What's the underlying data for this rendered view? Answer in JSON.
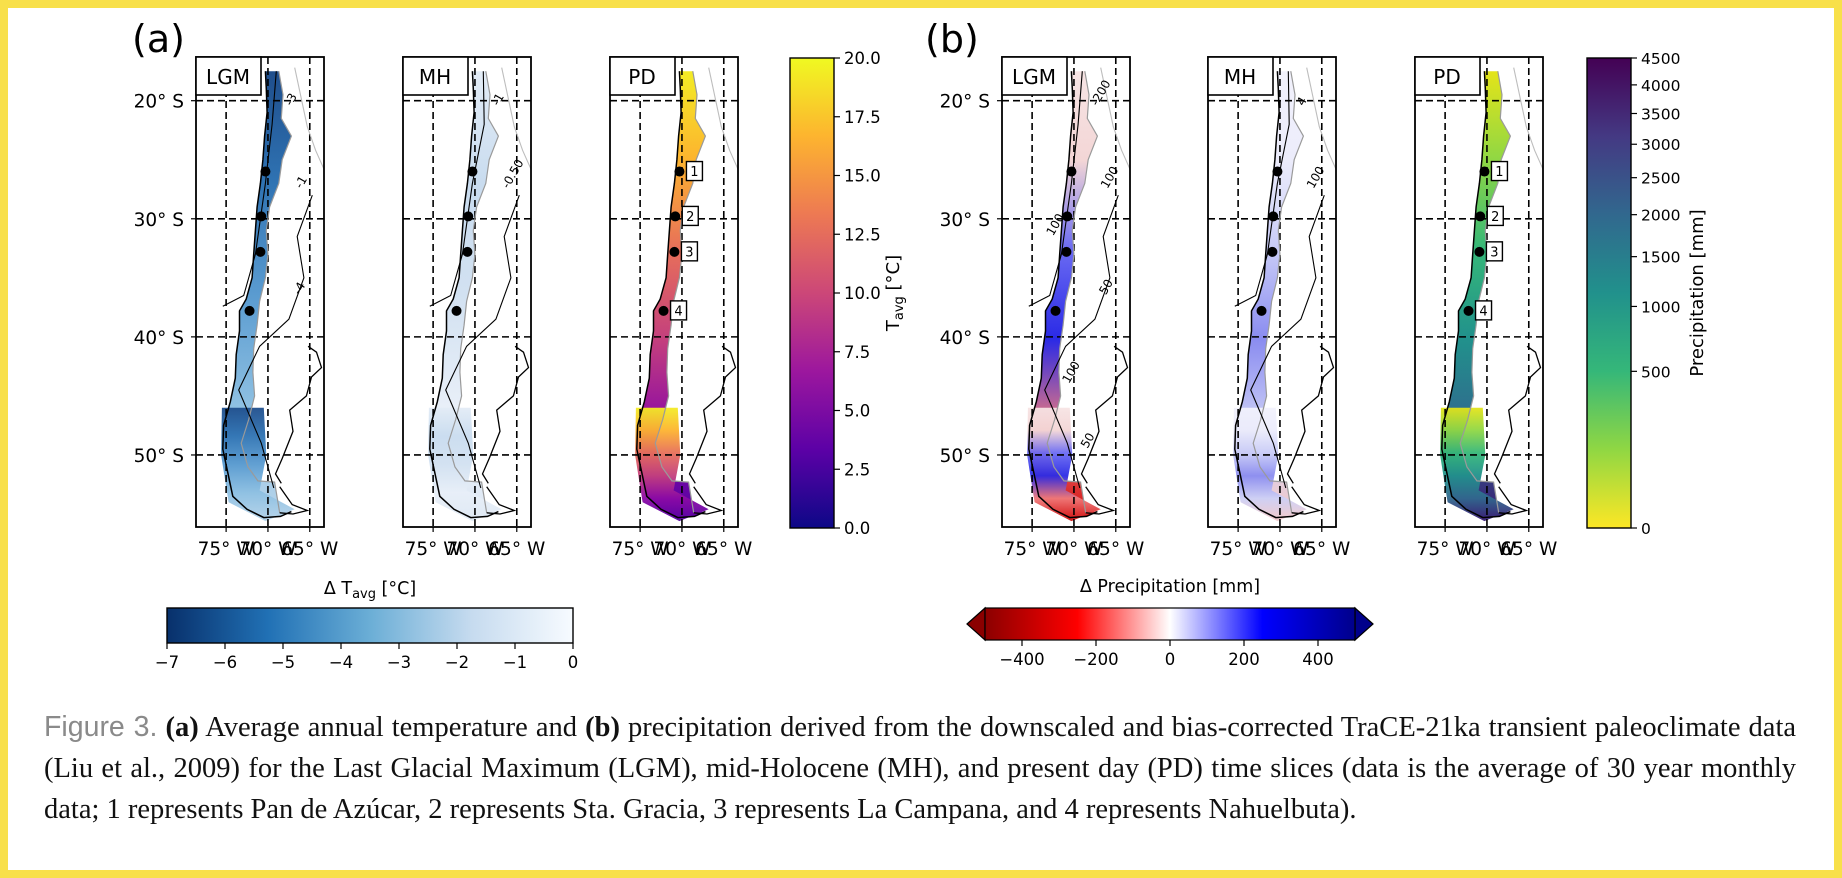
{
  "figure": {
    "panel_a": {
      "letter": "(a)",
      "maps": [
        {
          "label": "LGM",
          "kind": "temp-delta",
          "contours": [
            "-3",
            "-1",
            "-4"
          ],
          "sites": [
            {
              "lat": -26
            },
            {
              "lat": -29.8
            },
            {
              "lat": -32.8
            },
            {
              "lat": -37.8
            }
          ]
        },
        {
          "label": "MH",
          "kind": "temp-delta",
          "contours": [
            "-1",
            "-0.50"
          ],
          "sites": [
            {
              "lat": -26
            },
            {
              "lat": -29.8
            },
            {
              "lat": -32.8
            },
            {
              "lat": -37.8
            }
          ]
        },
        {
          "label": "PD",
          "kind": "temp-abs",
          "contours": [],
          "sites": [
            {
              "lat": -26,
              "tag": "1"
            },
            {
              "lat": -29.8,
              "tag": "2"
            },
            {
              "lat": -32.8,
              "tag": "3"
            },
            {
              "lat": -37.8,
              "tag": "4"
            }
          ]
        }
      ],
      "lat_ticks": [
        "20° S",
        "30° S",
        "40° S",
        "50° S"
      ],
      "lon_ticks": [
        "75° W",
        "70° W",
        "65° W"
      ],
      "vcolorbar": {
        "label_main": "T",
        "label_sub": "avg",
        "label_unit": " [°C]",
        "ticks": [
          "0.0",
          "2.5",
          "5.0",
          "7.5",
          "10.0",
          "12.5",
          "15.0",
          "17.5",
          "20.0"
        ],
        "colors": [
          "#0d0887",
          "#5c01a6",
          "#9c179e",
          "#cc4778",
          "#ed7953",
          "#fdb42f",
          "#f0f921"
        ]
      },
      "hcolorbar": {
        "label_pre": "Δ T",
        "label_sub": "avg",
        "label_unit": " [°C]",
        "ticks": [
          "−7",
          "−6",
          "−5",
          "−4",
          "−3",
          "−2",
          "−1",
          "0"
        ],
        "colors": [
          "#08306b",
          "#2171b5",
          "#6baed6",
          "#c6dbef",
          "#f7fbff"
        ]
      }
    },
    "panel_b": {
      "letter": "(b)",
      "maps": [
        {
          "label": "LGM",
          "kind": "prec-delta",
          "contours": [
            "-200",
            "100",
            "50",
            "100",
            "50",
            "100"
          ],
          "sites": [
            {
              "lat": -26
            },
            {
              "lat": -29.8
            },
            {
              "lat": -32.8
            },
            {
              "lat": -37.8
            }
          ]
        },
        {
          "label": "MH",
          "kind": "prec-delta",
          "contours": [
            "4",
            "100"
          ],
          "sites": [
            {
              "lat": -26
            },
            {
              "lat": -29.8
            },
            {
              "lat": -32.8
            },
            {
              "lat": -37.8
            }
          ]
        },
        {
          "label": "PD",
          "kind": "prec-abs",
          "contours": [],
          "sites": [
            {
              "lat": -26,
              "tag": "1"
            },
            {
              "lat": -29.8,
              "tag": "2"
            },
            {
              "lat": -32.8,
              "tag": "3"
            },
            {
              "lat": -37.8,
              "tag": "4"
            }
          ]
        }
      ],
      "lat_ticks": [
        "20° S",
        "30° S",
        "40° S",
        "50° S"
      ],
      "lon_ticks": [
        "75° W",
        "70° W",
        "65° W"
      ],
      "vcolorbar": {
        "label": "Precipitation [mm]",
        "ticks": [
          "0",
          "500",
          "1000",
          "1500",
          "2000",
          "2500",
          "3000",
          "3500",
          "4000",
          "4500"
        ],
        "colors": [
          "#fde725",
          "#90d743",
          "#35b779",
          "#21918c",
          "#31688e",
          "#443983",
          "#440154"
        ]
      },
      "hcolorbar": {
        "label": "Δ Precipitation [mm]",
        "ticks": [
          "−400",
          "−200",
          "0",
          "200",
          "400"
        ],
        "colors": [
          "#8b0000",
          "#ff0000",
          "#ffffff",
          "#0000ff",
          "#00008b"
        ]
      }
    }
  },
  "caption": {
    "label": "Figure 3.",
    "a": "(a)",
    "text1": " Average annual temperature and ",
    "b": "(b)",
    "text2": " precipitation derived from the downscaled and bias-corrected TraCE-21ka transient paleoclimate data (Liu et al., 2009) for the Last Glacial Maximum (LGM), mid-Holocene (MH), and present day (PD) time slices (data is the average of 30 year monthly data; 1 represents Pan de Azúcar, 2 represents Sta. Gracia, 3 represents La Campana, and 4 represents Nahuelbuta)."
  }
}
